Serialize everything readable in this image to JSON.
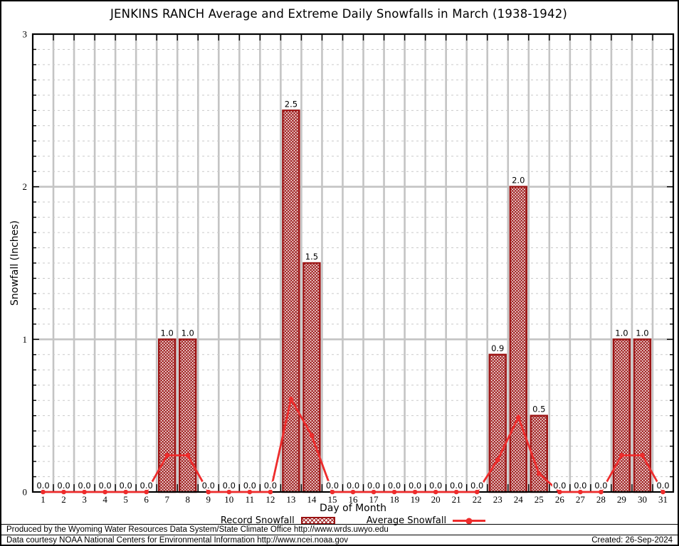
{
  "title": "JENKINS RANCH Average and Extreme Daily Snowfalls in March (1938-1942)",
  "chart_data": {
    "type": "bar",
    "title": "JENKINS RANCH Average and Extreme Daily Snowfalls in March (1938-1942)",
    "xlabel": "Day of Month",
    "ylabel": "Snowfall (Inches)",
    "x": [
      1,
      2,
      3,
      4,
      5,
      6,
      7,
      8,
      9,
      10,
      11,
      12,
      13,
      14,
      15,
      16,
      17,
      18,
      19,
      20,
      21,
      22,
      23,
      24,
      25,
      26,
      27,
      28,
      29,
      30,
      31
    ],
    "series": [
      {
        "name": "Record Snowfall",
        "type": "bar",
        "values": [
          0,
          0,
          0,
          0,
          0,
          0,
          1.0,
          1.0,
          0,
          0,
          0,
          0,
          2.5,
          1.5,
          0,
          0,
          0,
          0,
          0,
          0,
          0,
          0,
          0.9,
          2.0,
          0.5,
          0,
          0,
          0,
          1.0,
          1.0,
          0
        ]
      },
      {
        "name": "Average Snowfall",
        "type": "line",
        "values": [
          0,
          0,
          0,
          0,
          0,
          0,
          0.24,
          0.24,
          0,
          0,
          0,
          0,
          0.61,
          0.37,
          0,
          0,
          0,
          0,
          0,
          0,
          0,
          0,
          0.21,
          0.49,
          0.12,
          0,
          0,
          0,
          0.24,
          0.24,
          0
        ]
      }
    ],
    "bar_value_labels": [
      "0.0",
      "0.0",
      "0.0",
      "0.0",
      "0.0",
      "0.0",
      "1.0",
      "1.0",
      "0.0",
      "0.0",
      "0.0",
      "0.0",
      "2.5",
      "1.5",
      "0.0",
      "0.0",
      "0.0",
      "0.0",
      "0.0",
      "0.0",
      "0.0",
      "0.0",
      "0.9",
      "2.0",
      "0.5",
      "0.0",
      "0.0",
      "0.0",
      "1.0",
      "1.0",
      "0.0"
    ],
    "ylim": [
      0,
      3
    ],
    "y_major_ticks": [
      0,
      1,
      2,
      3
    ],
    "y_minor_step": 0.1,
    "grid": true,
    "legend_position": "bottom"
  },
  "legend": {
    "record_label": "Record Snowfall",
    "average_label": "Average Snowfall"
  },
  "footer": {
    "line1": "Produced by the Wyoming Water Resources Data System/State Climate Office http://www.wrds.uwyo.edu",
    "line2": "Data courtesy NOAA National Centers for Environmental Information http://www.ncei.noaa.gov",
    "created": "Created: 26-Sep-2024"
  },
  "colors": {
    "bar": "#9b1414",
    "line": "#ee2c2c",
    "grid_major": "#c4c4c4",
    "grid_minor": "#c9c9c9",
    "frame": "#000000",
    "background": "#ffffff"
  }
}
